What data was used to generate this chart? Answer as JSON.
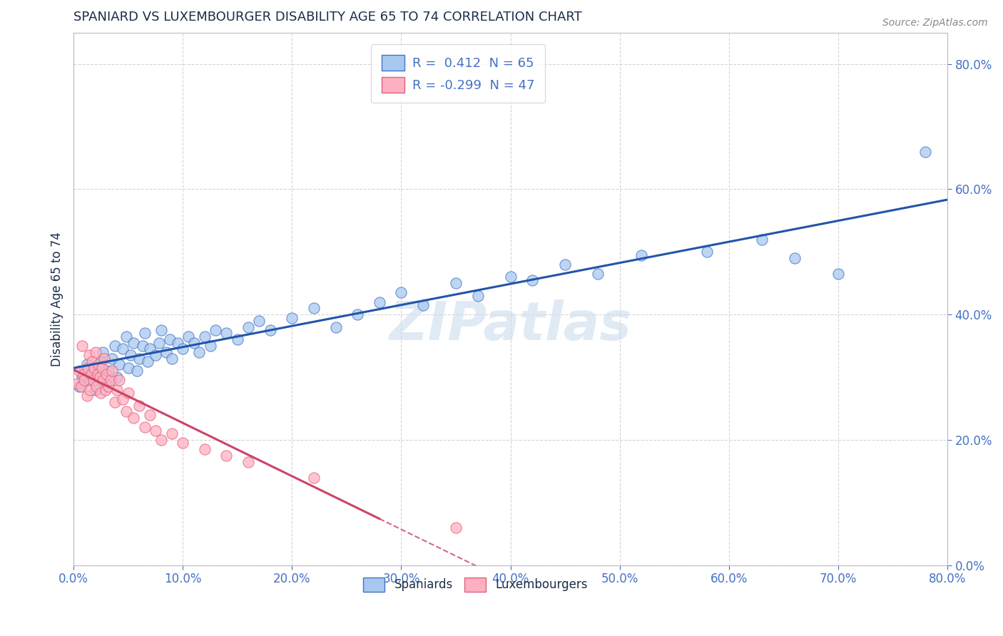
{
  "title": "SPANIARD VS LUXEMBOURGER DISABILITY AGE 65 TO 74 CORRELATION CHART",
  "source_text": "Source: ZipAtlas.com",
  "ylabel": "Disability Age 65 to 74",
  "xmin": 0.0,
  "xmax": 0.8,
  "ymin": 0.0,
  "ymax": 0.85,
  "r_spaniard": 0.412,
  "n_spaniard": 65,
  "r_luxembourger": -0.299,
  "n_luxembourger": 47,
  "blue_fill": "#A8C8F0",
  "blue_edge": "#4472C4",
  "pink_fill": "#FFB0C0",
  "pink_edge": "#E06080",
  "blue_line_color": "#2255AA",
  "pink_line_color": "#CC4466",
  "title_color": "#1A2E4A",
  "axis_label_color": "#4472C4",
  "watermark": "ZIPatlas",
  "grid_color": "#CCCCCC",
  "spaniards_x": [
    0.005,
    0.008,
    0.01,
    0.012,
    0.015,
    0.018,
    0.02,
    0.022,
    0.025,
    0.027,
    0.03,
    0.032,
    0.035,
    0.038,
    0.04,
    0.042,
    0.045,
    0.048,
    0.05,
    0.052,
    0.055,
    0.058,
    0.06,
    0.063,
    0.065,
    0.068,
    0.07,
    0.075,
    0.078,
    0.08,
    0.085,
    0.088,
    0.09,
    0.095,
    0.1,
    0.105,
    0.11,
    0.115,
    0.12,
    0.125,
    0.13,
    0.14,
    0.15,
    0.16,
    0.17,
    0.18,
    0.2,
    0.22,
    0.24,
    0.26,
    0.28,
    0.3,
    0.32,
    0.35,
    0.37,
    0.4,
    0.42,
    0.45,
    0.48,
    0.52,
    0.58,
    0.63,
    0.66,
    0.7,
    0.78
  ],
  "spaniards_y": [
    0.285,
    0.3,
    0.31,
    0.32,
    0.295,
    0.315,
    0.28,
    0.305,
    0.325,
    0.34,
    0.29,
    0.31,
    0.33,
    0.35,
    0.3,
    0.32,
    0.345,
    0.365,
    0.315,
    0.335,
    0.355,
    0.31,
    0.33,
    0.35,
    0.37,
    0.325,
    0.345,
    0.335,
    0.355,
    0.375,
    0.34,
    0.36,
    0.33,
    0.355,
    0.345,
    0.365,
    0.355,
    0.34,
    0.365,
    0.35,
    0.375,
    0.37,
    0.36,
    0.38,
    0.39,
    0.375,
    0.395,
    0.41,
    0.38,
    0.4,
    0.42,
    0.435,
    0.415,
    0.45,
    0.43,
    0.46,
    0.455,
    0.48,
    0.465,
    0.495,
    0.5,
    0.52,
    0.49,
    0.465,
    0.66
  ],
  "luxembourgers_x": [
    0.003,
    0.005,
    0.007,
    0.008,
    0.009,
    0.01,
    0.012,
    0.013,
    0.014,
    0.015,
    0.016,
    0.017,
    0.018,
    0.019,
    0.02,
    0.021,
    0.022,
    0.023,
    0.024,
    0.025,
    0.026,
    0.027,
    0.028,
    0.029,
    0.03,
    0.032,
    0.034,
    0.035,
    0.038,
    0.04,
    0.042,
    0.045,
    0.048,
    0.05,
    0.055,
    0.06,
    0.065,
    0.07,
    0.075,
    0.08,
    0.09,
    0.1,
    0.12,
    0.14,
    0.16,
    0.22,
    0.35
  ],
  "luxembourgers_y": [
    0.29,
    0.31,
    0.285,
    0.35,
    0.305,
    0.295,
    0.27,
    0.315,
    0.335,
    0.28,
    0.305,
    0.325,
    0.295,
    0.315,
    0.34,
    0.285,
    0.305,
    0.32,
    0.3,
    0.275,
    0.315,
    0.295,
    0.33,
    0.28,
    0.305,
    0.285,
    0.295,
    0.31,
    0.26,
    0.28,
    0.295,
    0.265,
    0.245,
    0.275,
    0.235,
    0.255,
    0.22,
    0.24,
    0.215,
    0.2,
    0.21,
    0.195,
    0.185,
    0.175,
    0.165,
    0.14,
    0.06
  ]
}
